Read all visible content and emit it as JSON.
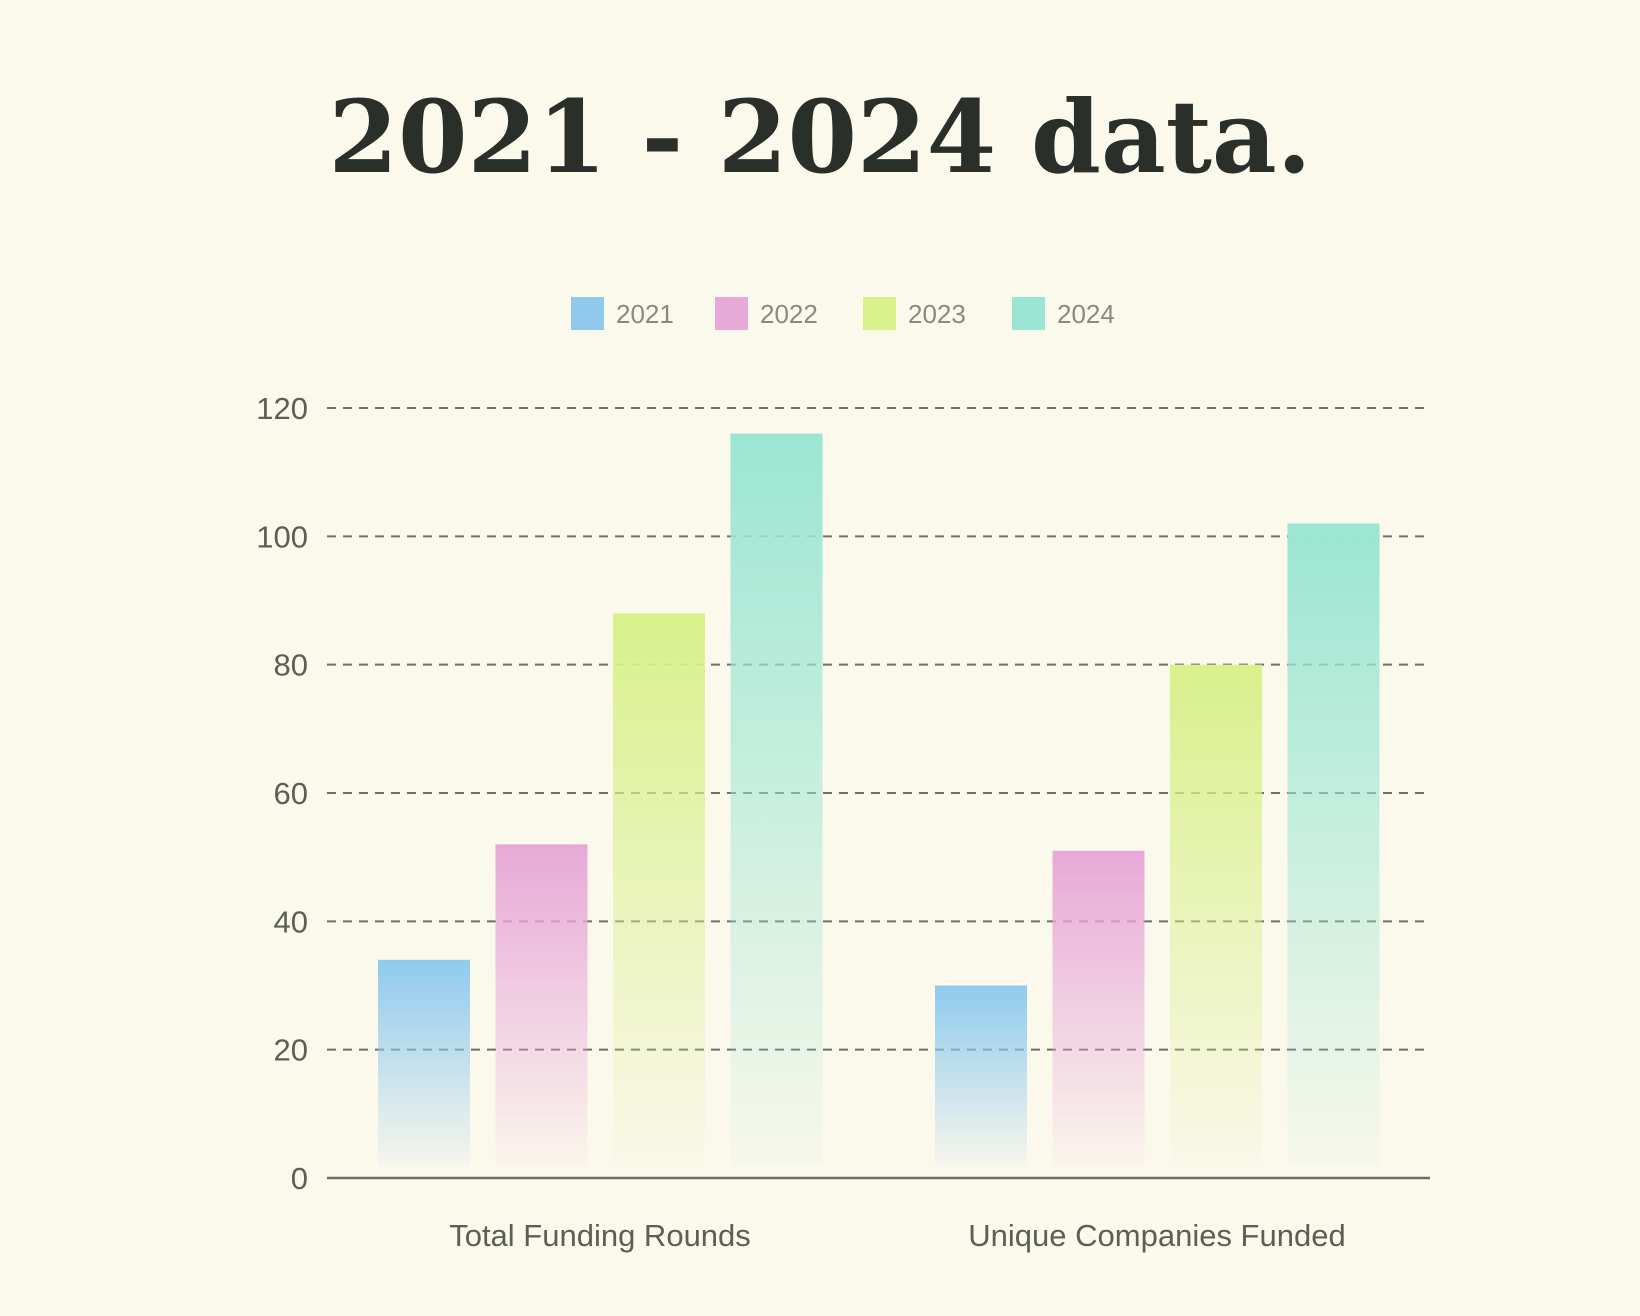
{
  "title": "2021 - 2024 data.",
  "chart_data": {
    "type": "bar",
    "title": "2021 - 2024 data.",
    "xlabel": "",
    "ylabel": "",
    "categories": [
      "Total Funding Rounds",
      "Unique Companies Funded"
    ],
    "series": [
      {
        "name": "2021",
        "color": "#8fcaee",
        "values": [
          34,
          30
        ]
      },
      {
        "name": "2022",
        "color": "#e7a9d8",
        "values": [
          52,
          51
        ]
      },
      {
        "name": "2023",
        "color": "#d9f08b",
        "values": [
          88,
          80
        ]
      },
      {
        "name": "2024",
        "color": "#9be6d2",
        "values": [
          116,
          102
        ]
      }
    ],
    "yticks": [
      "0",
      "20",
      "40",
      "60",
      "80",
      "100",
      "120"
    ],
    "ylim": [
      0,
      120
    ],
    "grid": true,
    "grid_style": "dashed",
    "legend_position": "top-center"
  }
}
